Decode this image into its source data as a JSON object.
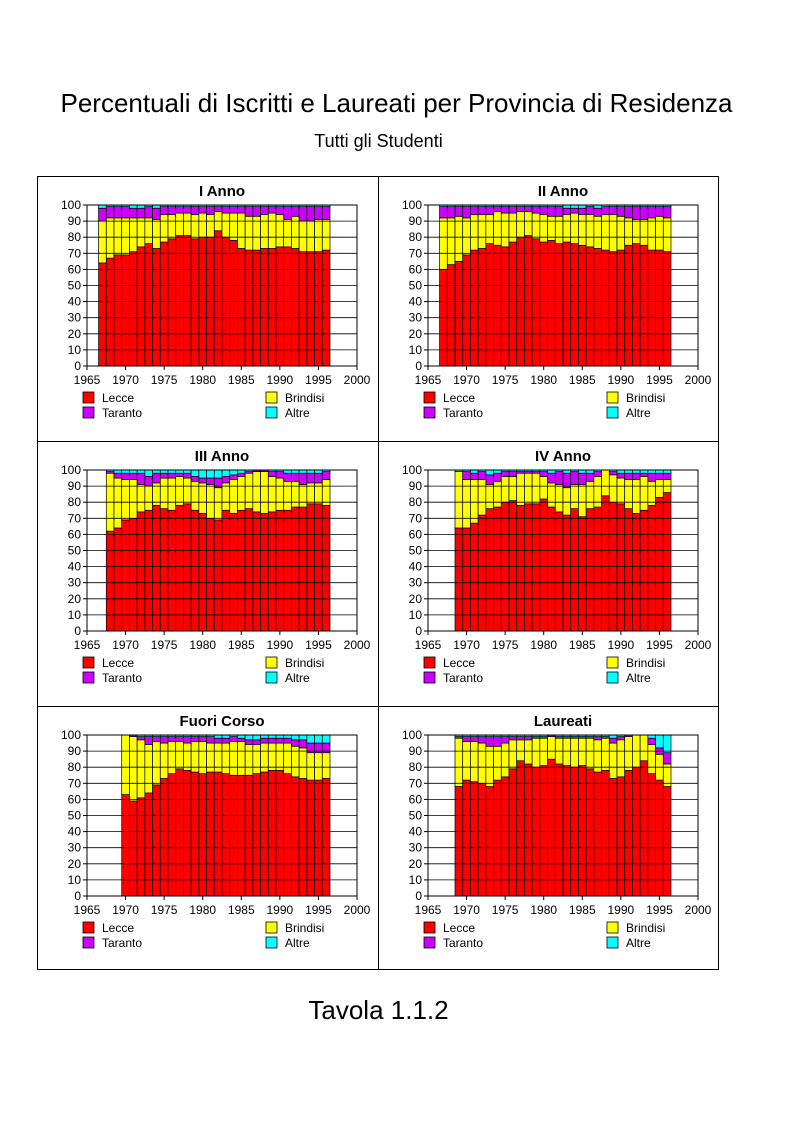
{
  "page": {
    "title": "Percentuali di Iscritti e Laureati per Provincia di Residenza",
    "subtitle": "Tutti gli Studenti",
    "footer": "Tavola 1.1.2"
  },
  "colors": {
    "Lecce": "#ff0000",
    "Brindisi": "#ffff00",
    "Taranto": "#cc00ff",
    "Altre": "#00ffff"
  },
  "legend": [
    "Lecce",
    "Brindisi",
    "Taranto",
    "Altre"
  ],
  "chart_data": [
    {
      "type": "bar",
      "title": "I Anno",
      "x": [
        1967,
        1968,
        1969,
        1970,
        1971,
        1972,
        1973,
        1974,
        1975,
        1976,
        1977,
        1978,
        1979,
        1980,
        1981,
        1982,
        1983,
        1984,
        1985,
        1986,
        1987,
        1988,
        1989,
        1990,
        1991,
        1992,
        1993,
        1994,
        1995,
        1996
      ],
      "series": [
        {
          "name": "Lecce",
          "values": [
            64,
            67,
            69,
            69,
            71,
            74,
            76,
            73,
            77,
            79,
            81,
            81,
            79,
            80,
            80,
            84,
            80,
            78,
            73,
            72,
            72,
            73,
            73,
            74,
            74,
            73,
            71,
            71,
            71,
            72
          ]
        },
        {
          "name": "Brindisi",
          "values": [
            26,
            25,
            23,
            23,
            21,
            18,
            16,
            18,
            17,
            15,
            14,
            14,
            15,
            15,
            14,
            12,
            15,
            17,
            22,
            21,
            21,
            21,
            22,
            20,
            17,
            20,
            19,
            19,
            20,
            19
          ]
        },
        {
          "name": "Taranto",
          "values": [
            8,
            7,
            7,
            7,
            6,
            6,
            7,
            7,
            5,
            5,
            4,
            4,
            5,
            4,
            5,
            3,
            4,
            4,
            4,
            6,
            6,
            5,
            4,
            5,
            8,
            6,
            9,
            9,
            8,
            8
          ]
        },
        {
          "name": "Altre",
          "values": [
            2,
            1,
            1,
            1,
            2,
            2,
            1,
            2,
            1,
            1,
            1,
            1,
            1,
            1,
            1,
            1,
            1,
            1,
            1,
            1,
            1,
            1,
            1,
            1,
            1,
            1,
            1,
            1,
            1,
            1
          ]
        }
      ],
      "xlim": [
        1965,
        2000
      ],
      "ylim": [
        0,
        100
      ],
      "xticks": [
        1965,
        1970,
        1975,
        1980,
        1985,
        1990,
        1995,
        2000
      ],
      "yticks": [
        0,
        10,
        20,
        30,
        40,
        50,
        60,
        70,
        80,
        90,
        100
      ],
      "stacked": true,
      "grid": true,
      "legend_position": "bottom"
    },
    {
      "type": "bar",
      "title": "II Anno",
      "x": [
        1967,
        1968,
        1969,
        1970,
        1971,
        1972,
        1973,
        1974,
        1975,
        1976,
        1977,
        1978,
        1979,
        1980,
        1981,
        1982,
        1983,
        1984,
        1985,
        1986,
        1987,
        1988,
        1989,
        1990,
        1991,
        1992,
        1993,
        1994,
        1995,
        1996
      ],
      "series": [
        {
          "name": "Lecce",
          "values": [
            60,
            63,
            65,
            69,
            72,
            73,
            76,
            75,
            74,
            77,
            80,
            81,
            79,
            77,
            78,
            76,
            77,
            76,
            75,
            74,
            73,
            72,
            71,
            72,
            75,
            76,
            75,
            72,
            72,
            71
          ]
        },
        {
          "name": "Brindisi",
          "values": [
            32,
            29,
            28,
            23,
            22,
            21,
            18,
            21,
            21,
            18,
            16,
            15,
            16,
            17,
            15,
            17,
            17,
            19,
            19,
            20,
            20,
            22,
            23,
            21,
            17,
            15,
            16,
            20,
            21,
            21
          ]
        },
        {
          "name": "Taranto",
          "values": [
            7,
            7,
            6,
            7,
            5,
            5,
            5,
            3,
            4,
            4,
            3,
            3,
            4,
            5,
            6,
            6,
            4,
            3,
            4,
            5,
            5,
            5,
            5,
            6,
            7,
            8,
            8,
            7,
            6,
            7
          ]
        },
        {
          "name": "Altre",
          "values": [
            1,
            1,
            1,
            1,
            1,
            1,
            1,
            1,
            1,
            1,
            1,
            1,
            1,
            1,
            1,
            1,
            2,
            2,
            2,
            1,
            2,
            1,
            1,
            1,
            1,
            1,
            1,
            1,
            1,
            1
          ]
        }
      ],
      "xlim": [
        1965,
        2000
      ],
      "ylim": [
        0,
        100
      ],
      "xticks": [
        1965,
        1970,
        1975,
        1980,
        1985,
        1990,
        1995,
        2000
      ],
      "yticks": [
        0,
        10,
        20,
        30,
        40,
        50,
        60,
        70,
        80,
        90,
        100
      ],
      "stacked": true,
      "grid": true,
      "legend_position": "bottom"
    },
    {
      "type": "bar",
      "title": "III Anno",
      "x": [
        1968,
        1969,
        1970,
        1971,
        1972,
        1973,
        1974,
        1975,
        1976,
        1977,
        1978,
        1979,
        1980,
        1981,
        1982,
        1983,
        1984,
        1985,
        1986,
        1987,
        1988,
        1989,
        1990,
        1991,
        1992,
        1993,
        1994,
        1995,
        1996
      ],
      "series": [
        {
          "name": "Lecce",
          "values": [
            62,
            64,
            69,
            70,
            74,
            75,
            78,
            76,
            75,
            78,
            79,
            75,
            73,
            70,
            69,
            75,
            73,
            75,
            76,
            74,
            73,
            74,
            75,
            75,
            77,
            77,
            79,
            79,
            78
          ]
        },
        {
          "name": "Brindisi",
          "values": [
            36,
            31,
            25,
            24,
            17,
            15,
            14,
            19,
            20,
            18,
            16,
            18,
            19,
            21,
            20,
            17,
            21,
            21,
            22,
            25,
            26,
            22,
            20,
            18,
            16,
            14,
            13,
            13,
            16
          ]
        },
        {
          "name": "Taranto",
          "values": [
            1,
            3,
            4,
            4,
            7,
            6,
            6,
            3,
            3,
            2,
            3,
            3,
            3,
            4,
            6,
            4,
            3,
            2,
            1,
            1,
            1,
            3,
            4,
            5,
            5,
            7,
            6,
            6,
            5
          ]
        },
        {
          "name": "Altre",
          "values": [
            1,
            2,
            2,
            2,
            2,
            4,
            2,
            2,
            2,
            2,
            2,
            4,
            5,
            5,
            5,
            4,
            3,
            2,
            1,
            0,
            0,
            1,
            1,
            2,
            2,
            2,
            2,
            2,
            1
          ]
        }
      ],
      "xlim": [
        1965,
        2000
      ],
      "ylim": [
        0,
        100
      ],
      "xticks": [
        1965,
        1970,
        1975,
        1980,
        1985,
        1990,
        1995,
        2000
      ],
      "yticks": [
        0,
        10,
        20,
        30,
        40,
        50,
        60,
        70,
        80,
        90,
        100
      ],
      "stacked": true,
      "grid": true,
      "legend_position": "bottom"
    },
    {
      "type": "bar",
      "title": "IV Anno",
      "x": [
        1969,
        1970,
        1971,
        1972,
        1973,
        1974,
        1975,
        1976,
        1977,
        1978,
        1979,
        1980,
        1981,
        1982,
        1983,
        1984,
        1985,
        1986,
        1987,
        1988,
        1989,
        1990,
        1991,
        1992,
        1993,
        1994,
        1995,
        1996
      ],
      "series": [
        {
          "name": "Lecce",
          "values": [
            64,
            64,
            67,
            72,
            76,
            77,
            80,
            81,
            78,
            79,
            79,
            82,
            77,
            74,
            72,
            76,
            71,
            76,
            77,
            84,
            80,
            79,
            76,
            73,
            75,
            78,
            83,
            86
          ]
        },
        {
          "name": "Brindisi",
          "values": [
            35,
            30,
            27,
            22,
            15,
            16,
            16,
            15,
            20,
            19,
            19,
            14,
            15,
            17,
            17,
            15,
            20,
            17,
            19,
            16,
            17,
            16,
            18,
            21,
            21,
            15,
            11,
            8
          ]
        },
        {
          "name": "Taranto",
          "values": [
            0,
            5,
            4,
            5,
            6,
            5,
            3,
            3,
            1,
            1,
            1,
            3,
            6,
            8,
            9,
            8,
            7,
            5,
            3,
            0,
            2,
            3,
            4,
            4,
            2,
            5,
            4,
            4
          ]
        },
        {
          "name": "Altre",
          "values": [
            1,
            1,
            2,
            1,
            3,
            2,
            1,
            1,
            1,
            1,
            1,
            1,
            2,
            1,
            2,
            1,
            2,
            2,
            1,
            0,
            1,
            2,
            2,
            2,
            2,
            2,
            2,
            2
          ]
        }
      ],
      "xlim": [
        1965,
        2000
      ],
      "ylim": [
        0,
        100
      ],
      "xticks": [
        1965,
        1970,
        1975,
        1980,
        1985,
        1990,
        1995,
        2000
      ],
      "yticks": [
        0,
        10,
        20,
        30,
        40,
        50,
        60,
        70,
        80,
        90,
        100
      ],
      "stacked": true,
      "grid": true,
      "legend_position": "bottom"
    },
    {
      "type": "bar",
      "title": "Fuori Corso",
      "x": [
        1970,
        1971,
        1972,
        1973,
        1974,
        1975,
        1976,
        1977,
        1978,
        1979,
        1980,
        1981,
        1982,
        1983,
        1984,
        1985,
        1986,
        1987,
        1988,
        1989,
        1990,
        1991,
        1992,
        1993,
        1994,
        1995,
        1996
      ],
      "series": [
        {
          "name": "Lecce",
          "values": [
            63,
            59,
            61,
            64,
            69,
            73,
            76,
            79,
            78,
            77,
            76,
            77,
            77,
            76,
            75,
            75,
            75,
            76,
            77,
            78,
            78,
            76,
            74,
            73,
            72,
            72,
            73
          ]
        },
        {
          "name": "Brindisi",
          "values": [
            37,
            40,
            36,
            30,
            27,
            22,
            20,
            17,
            17,
            19,
            20,
            18,
            18,
            19,
            21,
            21,
            19,
            18,
            18,
            17,
            17,
            19,
            19,
            19,
            17,
            17,
            16
          ]
        },
        {
          "name": "Taranto",
          "values": [
            0,
            1,
            2,
            5,
            3,
            4,
            3,
            3,
            4,
            3,
            3,
            4,
            3,
            3,
            3,
            2,
            3,
            3,
            3,
            3,
            3,
            3,
            4,
            5,
            6,
            6,
            6
          ]
        },
        {
          "name": "Altre",
          "values": [
            0,
            0,
            1,
            1,
            1,
            1,
            1,
            1,
            1,
            1,
            1,
            1,
            2,
            2,
            1,
            2,
            3,
            3,
            2,
            2,
            2,
            2,
            3,
            3,
            5,
            5,
            5
          ]
        }
      ],
      "xlim": [
        1965,
        2000
      ],
      "ylim": [
        0,
        100
      ],
      "xticks": [
        1965,
        1970,
        1975,
        1980,
        1985,
        1990,
        1995,
        2000
      ],
      "yticks": [
        0,
        10,
        20,
        30,
        40,
        50,
        60,
        70,
        80,
        90,
        100
      ],
      "stacked": true,
      "grid": true,
      "legend_position": "bottom"
    },
    {
      "type": "bar",
      "title": "Laureati",
      "x": [
        1969,
        1970,
        1971,
        1972,
        1973,
        1974,
        1975,
        1976,
        1977,
        1978,
        1979,
        1980,
        1981,
        1982,
        1983,
        1984,
        1985,
        1986,
        1987,
        1988,
        1989,
        1990,
        1991,
        1992,
        1993,
        1994,
        1995,
        1996
      ],
      "series": [
        {
          "name": "Lecce",
          "values": [
            68,
            72,
            71,
            70,
            68,
            72,
            74,
            79,
            84,
            82,
            80,
            81,
            85,
            82,
            81,
            80,
            81,
            79,
            77,
            78,
            73,
            74,
            78,
            80,
            84,
            76,
            72,
            68
          ]
        },
        {
          "name": "Brindisi",
          "values": [
            30,
            24,
            25,
            25,
            25,
            21,
            21,
            18,
            13,
            15,
            18,
            17,
            14,
            16,
            17,
            18,
            17,
            19,
            20,
            20,
            22,
            23,
            21,
            20,
            16,
            18,
            16,
            14
          ]
        },
        {
          "name": "Taranto",
          "values": [
            1,
            3,
            3,
            4,
            6,
            6,
            4,
            2,
            2,
            2,
            1,
            1,
            1,
            1,
            1,
            1,
            1,
            1,
            2,
            1,
            3,
            2,
            1,
            0,
            0,
            4,
            4,
            7
          ]
        },
        {
          "name": "Altre",
          "values": [
            1,
            1,
            1,
            1,
            1,
            1,
            1,
            1,
            1,
            1,
            1,
            1,
            0,
            1,
            1,
            1,
            1,
            1,
            1,
            1,
            2,
            1,
            0,
            0,
            0,
            2,
            8,
            11
          ]
        }
      ],
      "xlim": [
        1965,
        2000
      ],
      "ylim": [
        0,
        100
      ],
      "xticks": [
        1965,
        1970,
        1975,
        1980,
        1985,
        1990,
        1995,
        2000
      ],
      "yticks": [
        0,
        10,
        20,
        30,
        40,
        50,
        60,
        70,
        80,
        90,
        100
      ],
      "stacked": true,
      "grid": true,
      "legend_position": "bottom"
    }
  ]
}
